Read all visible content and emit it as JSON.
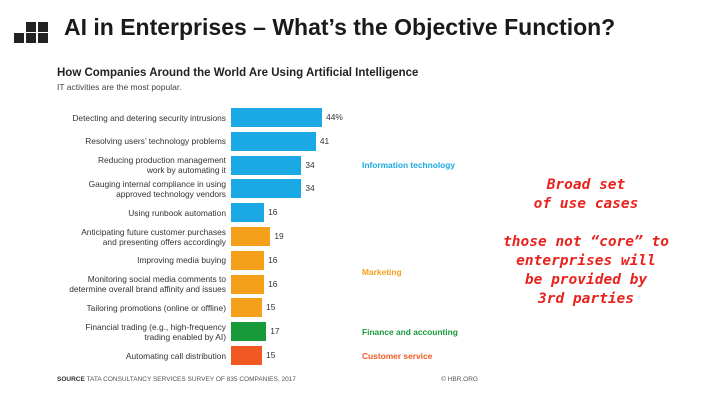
{
  "slide": {
    "title": "AI in Enterprises – What’s the Objective Function?",
    "source_label": "SOURCE",
    "source_text": "TATA CONSULTANCY SERVICES SURVEY OF 835 COMPANIES, 2017",
    "credit": "© HBR.ORG",
    "note_lines": [
      "Broad set",
      "of use cases",
      "",
      "those not “core” to",
      "enterprises will",
      "be provided by",
      "3rd parties"
    ]
  },
  "chart_data": {
    "type": "bar",
    "orientation": "horizontal",
    "title": "How Companies Around the World Are Using Artificial Intelligence",
    "subtitle": "IT activities are the most popular.",
    "categories": [
      "Detecting and detering security intrusions",
      "Resolving users’ technology problems",
      "Reducing production management\nwork by automating it",
      "Gauging internal compliance in using\napproved technology vendors",
      "Using runbook automation",
      "Anticipating future customer purchases\nand presenting offers accordingly",
      "Improving media buying",
      "Monitoring social media comments to\ndetermine overall brand affinity and issues",
      "Tailoring promotions (online or offline)",
      "Financial trading (e.g., high-frequency\ntrading enabled by AI)",
      "Automating call distribution"
    ],
    "values": [
      44,
      41,
      34,
      34,
      16,
      19,
      16,
      16,
      15,
      17,
      15
    ],
    "value_labels": [
      "44%",
      "41",
      "34",
      "34",
      "16",
      "19",
      "16",
      "16",
      "15",
      "17",
      "15"
    ],
    "groups": [
      {
        "name": "Information technology",
        "color": "#1aa9e4",
        "indices": [
          0,
          1,
          2,
          3,
          4
        ]
      },
      {
        "name": "Marketing",
        "color": "#f5a01a",
        "indices": [
          5,
          6,
          7,
          8
        ]
      },
      {
        "name": "Finance and accounting",
        "color": "#169a3a",
        "indices": [
          9
        ]
      },
      {
        "name": "Customer service",
        "color": "#f05a22",
        "indices": [
          10
        ]
      }
    ],
    "xlim": [
      0,
      44
    ],
    "grid": false
  }
}
